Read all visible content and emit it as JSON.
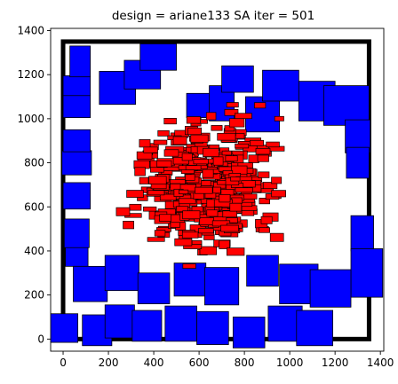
{
  "chart_data": {
    "type": "scatter",
    "title": "design = ariane133   SA iter = 501",
    "xlabel": "",
    "ylabel": "",
    "xlim": [
      -55,
      1415
    ],
    "ylim": [
      -55,
      1410
    ],
    "x_ticks": [
      0,
      200,
      400,
      600,
      800,
      1000,
      1200,
      1400
    ],
    "y_ticks": [
      0,
      200,
      400,
      600,
      800,
      1000,
      1200,
      1400
    ],
    "grid": false,
    "boundary": {
      "x0": 0,
      "y0": 0,
      "x1": 1350,
      "y1": 1350
    },
    "colors": {
      "macro": "#0000ff",
      "cell": "#ff0000",
      "edge": "#000000",
      "boundary": "#000000"
    },
    "series": [
      {
        "kind": "macro",
        "points": [
          [
            60,
            380,
            100,
            100
          ],
          [
            60,
            480,
            110,
            130
          ],
          [
            60,
            650,
            120,
            120
          ],
          [
            60,
            800,
            130,
            110
          ],
          [
            60,
            900,
            120,
            100
          ],
          [
            60,
            1060,
            120,
            110
          ],
          [
            60,
            1150,
            120,
            90
          ],
          [
            75,
            1260,
            90,
            140
          ],
          [
            240,
            1140,
            160,
            150
          ],
          [
            350,
            1200,
            160,
            130
          ],
          [
            420,
            1280,
            160,
            120
          ],
          [
            600,
            1060,
            110,
            110
          ],
          [
            700,
            1070,
            110,
            160
          ],
          [
            770,
            1180,
            140,
            120
          ],
          [
            880,
            1020,
            150,
            160
          ],
          [
            960,
            1150,
            160,
            140
          ],
          [
            1120,
            1080,
            160,
            180
          ],
          [
            1250,
            1060,
            200,
            180
          ],
          [
            1300,
            920,
            110,
            150
          ],
          [
            1300,
            800,
            100,
            140
          ],
          [
            1320,
            480,
            100,
            160
          ],
          [
            1340,
            300,
            140,
            220
          ],
          [
            0,
            50,
            130,
            130
          ],
          [
            150,
            40,
            130,
            140
          ],
          [
            250,
            80,
            130,
            150
          ],
          [
            370,
            60,
            130,
            140
          ],
          [
            520,
            70,
            140,
            160
          ],
          [
            660,
            50,
            140,
            150
          ],
          [
            820,
            30,
            140,
            140
          ],
          [
            980,
            70,
            150,
            160
          ],
          [
            1110,
            50,
            160,
            160
          ],
          [
            120,
            250,
            150,
            160
          ],
          [
            260,
            300,
            150,
            160
          ],
          [
            400,
            230,
            140,
            140
          ],
          [
            560,
            270,
            140,
            150
          ],
          [
            700,
            240,
            150,
            170
          ],
          [
            880,
            310,
            140,
            140
          ],
          [
            1040,
            250,
            170,
            180
          ],
          [
            1180,
            230,
            180,
            170
          ]
        ]
      },
      {
        "kind": "cell",
        "count": 420,
        "center": [
          640,
          700
        ],
        "spread": [
          190,
          175
        ]
      }
    ]
  }
}
